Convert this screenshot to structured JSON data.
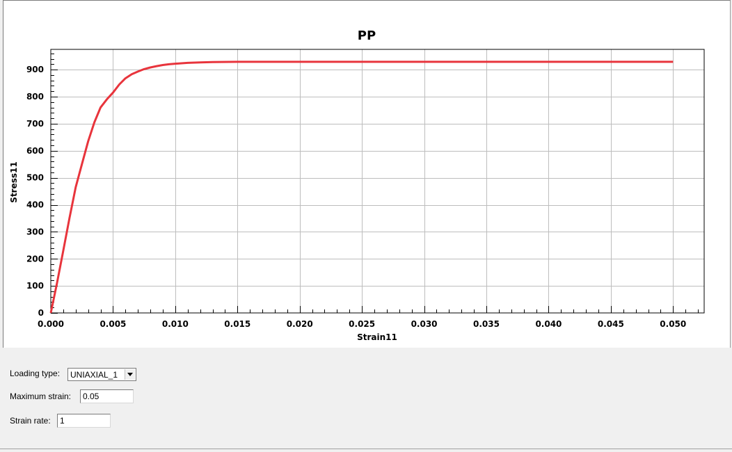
{
  "chart_data": {
    "type": "line",
    "title": "PP",
    "xlabel": "Strain11",
    "ylabel": "Stress11",
    "xlim": [
      0,
      0.0525
    ],
    "ylim": [
      0,
      975
    ],
    "xticks": [
      0.0,
      0.005,
      0.01,
      0.015,
      0.02,
      0.025,
      0.03,
      0.035,
      0.04,
      0.045,
      0.05
    ],
    "xtick_labels": [
      "0.000",
      "0.005",
      "0.010",
      "0.015",
      "0.020",
      "0.025",
      "0.030",
      "0.035",
      "0.040",
      "0.045",
      "0.050"
    ],
    "yticks": [
      0,
      100,
      200,
      300,
      400,
      500,
      600,
      700,
      800,
      900
    ],
    "ytick_labels": [
      "0",
      "100",
      "200",
      "300",
      "400",
      "500",
      "600",
      "700",
      "800",
      "900"
    ],
    "grid": true,
    "series": [
      {
        "color": "#e8343c",
        "x": [
          0,
          0.0005,
          0.001,
          0.0015,
          0.002,
          0.0025,
          0.003,
          0.0035,
          0.004,
          0.0045,
          0.005,
          0.0055,
          0.006,
          0.0065,
          0.007,
          0.0075,
          0.008,
          0.0085,
          0.009,
          0.0095,
          0.01,
          0.011,
          0.012,
          0.013,
          0.015,
          0.02,
          0.025,
          0.03,
          0.035,
          0.04,
          0.045,
          0.05
        ],
        "y": [
          0,
          110,
          230,
          350,
          465,
          550,
          635,
          705,
          760,
          790,
          815,
          845,
          868,
          883,
          893,
          902,
          908,
          913,
          917,
          920,
          922,
          925,
          927,
          928,
          929,
          929,
          929,
          929,
          929,
          929,
          929,
          929
        ]
      }
    ]
  },
  "controls": {
    "loading_type_label": "Loading type:",
    "loading_type_value": "UNIAXIAL_1",
    "max_strain_label": "Maximum strain:",
    "max_strain_value": "0.05",
    "strain_rate_label": "Strain rate:",
    "strain_rate_value": "1"
  }
}
